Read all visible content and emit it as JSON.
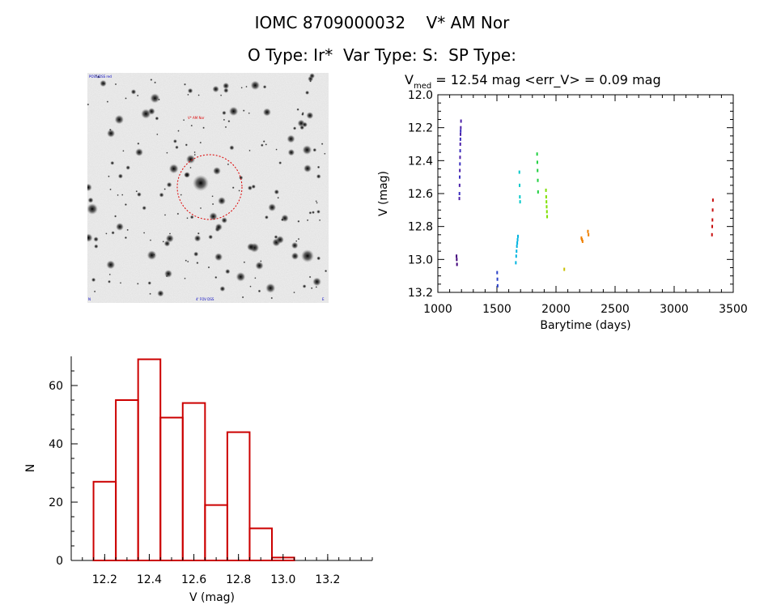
{
  "header": {
    "line1_parts": [
      "IOMC 8709000032",
      "V* AM Nor"
    ],
    "line2_parts": [
      "O Type: Ir*",
      "Var Type: S:",
      "SP Type:"
    ]
  },
  "sky_image": {
    "label_top_left": "POSS/DSS red",
    "label_star": "V* AM Nor",
    "label_bottom_center": "4' FOV DSS",
    "label_bottom_left": "N",
    "label_bottom_right": "E"
  },
  "chart_data": [
    {
      "type": "scatter",
      "title_prefix": "V",
      "title_subscript": "med",
      "title_rest": " = 12.54 mag <err_V> = 0.09 mag",
      "xlabel": "Barytime (days)",
      "ylabel": "V (mag)",
      "xlim": [
        1000,
        3500
      ],
      "ylim": [
        12.0,
        13.2
      ],
      "y_inverted": true,
      "xticks": [
        "1000",
        "1500",
        "2000",
        "2500",
        "3000",
        "3500"
      ],
      "yticks": [
        "12.0",
        "12.2",
        "12.4",
        "12.6",
        "12.8",
        "13.0",
        "13.2"
      ],
      "groups": [
        {
          "color": "#40007a",
          "x": [
            1158,
            1160,
            1162
          ],
          "y": [
            12.98,
            13.0,
            13.03
          ]
        },
        {
          "color": "#4b1fa8",
          "x": [
            1182,
            1184,
            1186,
            1188,
            1190,
            1192,
            1194,
            1196
          ],
          "y": [
            12.63,
            12.55,
            12.46,
            12.38,
            12.3,
            12.24,
            12.2,
            12.16
          ]
        },
        {
          "color": "#3a2fbf",
          "x": [
            1183,
            1185,
            1187,
            1189,
            1191,
            1193
          ],
          "y": [
            12.6,
            12.5,
            12.42,
            12.34,
            12.27,
            12.22
          ]
        },
        {
          "color": "#2a40c8",
          "x": [
            1502,
            1504,
            1506
          ],
          "y": [
            13.08,
            13.12,
            13.16
          ]
        },
        {
          "color": "#00b4e0",
          "x": [
            1660,
            1663,
            1666,
            1669,
            1672,
            1675,
            1678
          ],
          "y": [
            13.02,
            12.98,
            12.95,
            12.92,
            12.9,
            12.88,
            12.86
          ]
        },
        {
          "color": "#00c8c8",
          "x": [
            1690,
            1692,
            1694,
            1696
          ],
          "y": [
            12.47,
            12.55,
            12.62,
            12.65
          ]
        },
        {
          "color": "#20d040",
          "x": [
            1840,
            1842,
            1844,
            1846,
            1848
          ],
          "y": [
            12.36,
            12.41,
            12.46,
            12.52,
            12.59
          ]
        },
        {
          "color": "#7fe000",
          "x": [
            1915,
            1917,
            1919,
            1921,
            1923,
            1925
          ],
          "y": [
            12.58,
            12.62,
            12.65,
            12.68,
            12.71,
            12.74
          ]
        },
        {
          "color": "#c8c000",
          "x": [
            2070
          ],
          "y": [
            13.06
          ]
        },
        {
          "color": "#f08000",
          "x": [
            2215,
            2220,
            2225,
            2270,
            2275
          ],
          "y": [
            12.87,
            12.88,
            12.89,
            12.83,
            12.85
          ]
        },
        {
          "color": "#c81010",
          "x": [
            3320,
            3322,
            3324,
            3326,
            3328
          ],
          "y": [
            12.85,
            12.8,
            12.76,
            12.7,
            12.64
          ]
        }
      ]
    },
    {
      "type": "bar",
      "histogram": true,
      "xlabel": "V (mag)",
      "ylabel": "N",
      "xlim": [
        12.05,
        13.4
      ],
      "ylim": [
        0,
        70
      ],
      "bin_edges": [
        12.15,
        12.25,
        12.35,
        12.45,
        12.55,
        12.65,
        12.75,
        12.85,
        12.95,
        13.05,
        13.15
      ],
      "values": [
        27,
        55,
        69,
        49,
        54,
        19,
        44,
        11,
        1,
        0
      ],
      "bar_color": "#cc0000",
      "xticks": [
        "12.2",
        "12.4",
        "12.6",
        "12.8",
        "13.0",
        "13.2"
      ],
      "yticks": [
        "0",
        "20",
        "40",
        "60"
      ]
    }
  ]
}
